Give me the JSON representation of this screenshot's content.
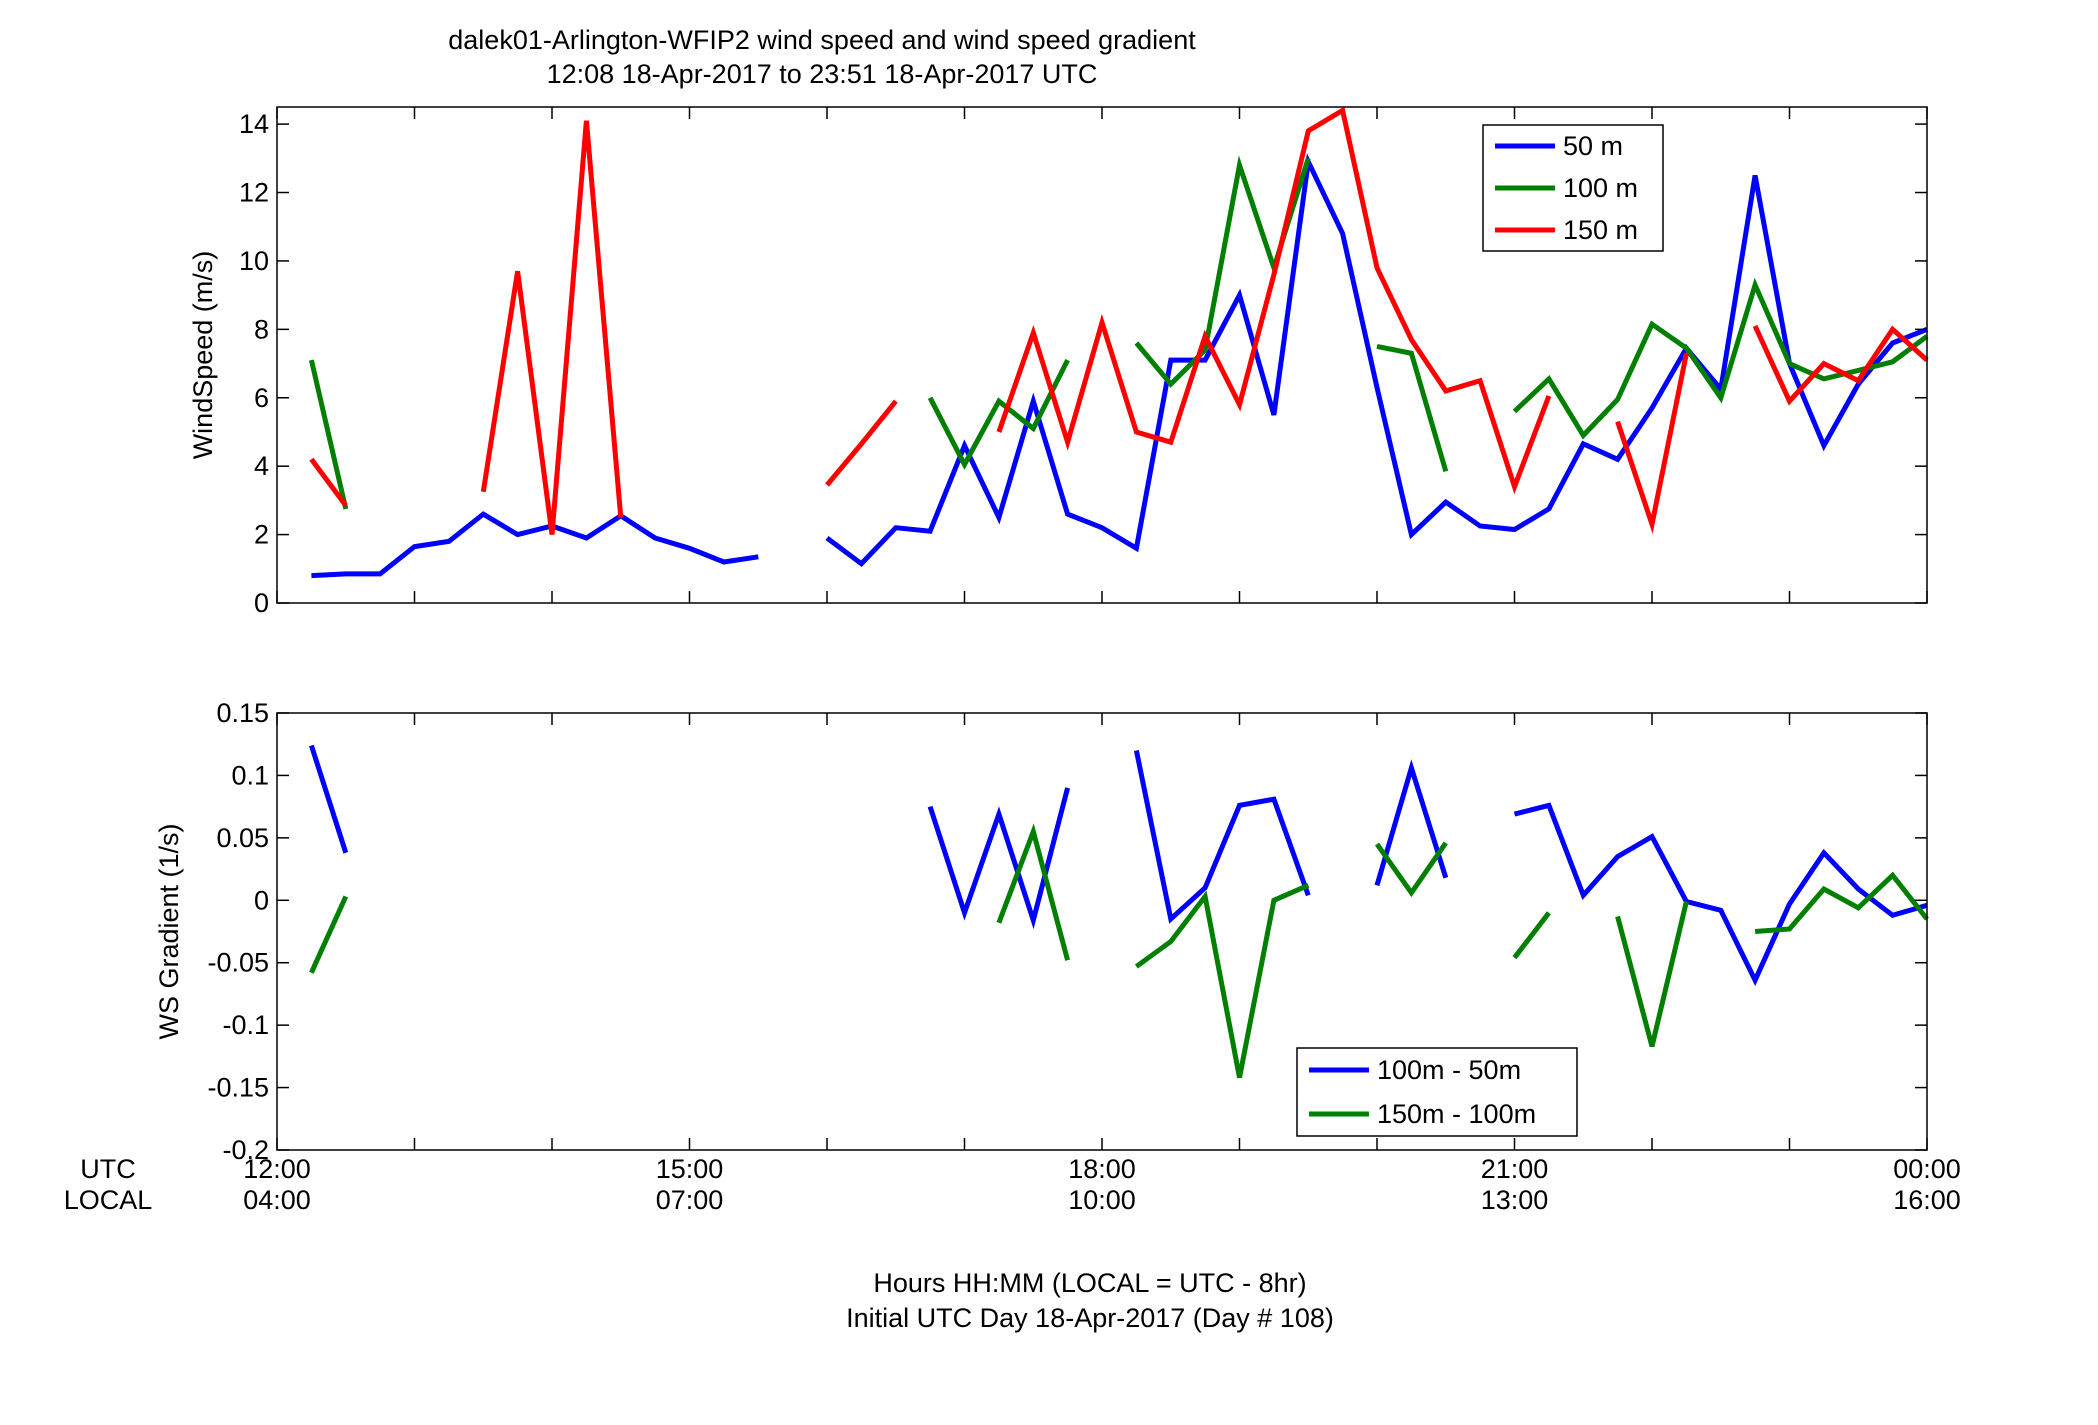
{
  "figure": {
    "title_line1": "dalek01-Arlington-WFIP2  wind speed and wind speed gradient",
    "title_line2": "12:08 18-Apr-2017 to 23:51 18-Apr-2017  UTC",
    "row_label_utc": "UTC",
    "row_label_local": "LOCAL",
    "xlabel_line1": "Hours HH:MM  (LOCAL = UTC - 8hr)",
    "xlabel_line2": "Initial UTC Day 18-Apr-2017 (Day # 108)",
    "utc_ticks": [
      "12:00",
      "15:00",
      "18:00",
      "21:00",
      "00:00"
    ],
    "local_ticks": [
      "04:00",
      "07:00",
      "10:00",
      "13:00",
      "16:00"
    ]
  },
  "colors": {
    "blue": "#0000ff",
    "green": "#007f00",
    "red": "#ff0000"
  },
  "chart_data": [
    {
      "type": "line",
      "ylabel": "WindSpeed (m/s)",
      "xlim": [
        12.0,
        24.0
      ],
      "ylim": [
        0,
        14.5
      ],
      "yticks": [
        0,
        2,
        4,
        6,
        8,
        10,
        12,
        14
      ],
      "ytick_labels": [
        "0",
        "2",
        "4",
        "6",
        "8",
        "10",
        "12",
        "14"
      ],
      "xticks": [
        12,
        13,
        14,
        15,
        16,
        17,
        18,
        19,
        20,
        21,
        22,
        23,
        24
      ],
      "grid": false,
      "legend_position": "top-right",
      "x": [
        12.25,
        12.5,
        12.75,
        13.0,
        13.25,
        13.5,
        13.75,
        14.0,
        14.25,
        14.5,
        14.75,
        15.0,
        15.25,
        15.5,
        15.75,
        16.0,
        16.25,
        16.5,
        16.75,
        17.0,
        17.25,
        17.5,
        17.75,
        18.0,
        18.25,
        18.5,
        18.75,
        19.0,
        19.25,
        19.5,
        19.75,
        20.0,
        20.25,
        20.5,
        20.75,
        21.0,
        21.25,
        21.5,
        21.75,
        22.0,
        22.25,
        22.5,
        22.75,
        23.0,
        23.25,
        23.5,
        23.75,
        24.0
      ],
      "series": [
        {
          "name": "50 m",
          "color": "#0000ff",
          "values": [
            0.8,
            0.85,
            0.85,
            1.65,
            1.8,
            2.6,
            2.0,
            2.25,
            1.9,
            2.55,
            1.9,
            1.6,
            1.2,
            1.35,
            null,
            1.9,
            1.15,
            2.2,
            2.1,
            4.6,
            2.5,
            5.9,
            2.6,
            2.2,
            1.6,
            7.1,
            7.1,
            9.0,
            5.5,
            12.9,
            10.8,
            6.3,
            2.0,
            2.95,
            2.25,
            2.15,
            2.75,
            4.65,
            4.2,
            5.7,
            7.45,
            6.25,
            12.5,
            7.0,
            4.6,
            6.4,
            7.6,
            8.0
          ]
        },
        {
          "name": "100 m",
          "color": "#007f00",
          "values": [
            7.1,
            2.75,
            null,
            null,
            null,
            null,
            null,
            null,
            null,
            null,
            null,
            null,
            null,
            null,
            null,
            null,
            null,
            null,
            6.0,
            4.05,
            5.9,
            5.1,
            7.1,
            null,
            7.6,
            6.4,
            7.4,
            12.8,
            9.8,
            13.0,
            null,
            7.5,
            7.3,
            3.85,
            null,
            5.6,
            6.55,
            4.9,
            5.95,
            8.15,
            7.45,
            6.0,
            9.3,
            7.0,
            6.55,
            6.8,
            7.05,
            7.8
          ]
        },
        {
          "name": "150 m",
          "color": "#ff0000",
          "values": [
            4.2,
            2.85,
            null,
            null,
            null,
            3.25,
            9.7,
            2.0,
            14.1,
            2.5,
            null,
            null,
            null,
            null,
            null,
            3.45,
            4.65,
            5.9,
            null,
            null,
            5.0,
            7.9,
            4.7,
            8.2,
            5.0,
            4.7,
            7.8,
            5.8,
            9.6,
            13.8,
            14.4,
            9.8,
            7.7,
            6.2,
            6.5,
            3.4,
            6.05,
            null,
            5.3,
            2.3,
            7.3,
            null,
            8.1,
            5.9,
            7.0,
            6.5,
            8.0,
            7.1
          ]
        }
      ]
    },
    {
      "type": "line",
      "ylabel": "WS Gradient (1/s)",
      "xlim": [
        12.0,
        24.0
      ],
      "ylim": [
        -0.2,
        0.15
      ],
      "yticks": [
        -0.2,
        -0.15,
        -0.1,
        -0.05,
        0,
        0.05,
        0.1,
        0.15
      ],
      "ytick_labels": [
        "-0.2",
        "-0.15",
        "-0.1",
        "-0.05",
        "0",
        "0.05",
        "0.1",
        "0.15"
      ],
      "xticks": [
        12,
        13,
        14,
        15,
        16,
        17,
        18,
        19,
        20,
        21,
        22,
        23,
        24
      ],
      "grid": false,
      "legend_position": "bottom-center",
      "x": [
        12.25,
        12.5,
        12.75,
        13.0,
        13.25,
        13.5,
        13.75,
        14.0,
        14.25,
        14.5,
        14.75,
        15.0,
        15.25,
        15.5,
        15.75,
        16.0,
        16.25,
        16.5,
        16.75,
        17.0,
        17.25,
        17.5,
        17.75,
        18.0,
        18.25,
        18.5,
        18.75,
        19.0,
        19.25,
        19.5,
        19.75,
        20.0,
        20.25,
        20.5,
        20.75,
        21.0,
        21.25,
        21.5,
        21.75,
        22.0,
        22.25,
        22.5,
        22.75,
        23.0,
        23.25,
        23.5,
        23.75,
        24.0
      ],
      "series": [
        {
          "name": "100m - 50m",
          "color": "#0000ff",
          "values": [
            0.124,
            0.038,
            null,
            null,
            null,
            null,
            null,
            null,
            null,
            null,
            null,
            null,
            null,
            null,
            null,
            null,
            null,
            null,
            0.075,
            -0.01,
            0.069,
            -0.016,
            0.09,
            null,
            0.12,
            -0.015,
            0.01,
            0.076,
            0.081,
            0.004,
            null,
            0.012,
            0.106,
            0.018,
            null,
            0.069,
            0.076,
            0.004,
            0.035,
            0.051,
            -0.001,
            -0.008,
            -0.064,
            -0.003,
            0.038,
            0.009,
            -0.012,
            -0.004
          ]
        },
        {
          "name": "150m - 100m",
          "color": "#007f00",
          "values": [
            -0.058,
            0.003,
            null,
            null,
            null,
            null,
            null,
            null,
            null,
            null,
            null,
            null,
            null,
            null,
            null,
            null,
            null,
            null,
            null,
            null,
            -0.018,
            0.055,
            -0.048,
            null,
            -0.053,
            -0.033,
            0.003,
            -0.142,
            0.0,
            0.012,
            null,
            0.045,
            0.006,
            0.046,
            null,
            -0.046,
            -0.01,
            null,
            -0.013,
            -0.117,
            -0.001,
            null,
            -0.025,
            -0.023,
            0.009,
            -0.006,
            0.02,
            -0.015
          ]
        }
      ]
    }
  ]
}
